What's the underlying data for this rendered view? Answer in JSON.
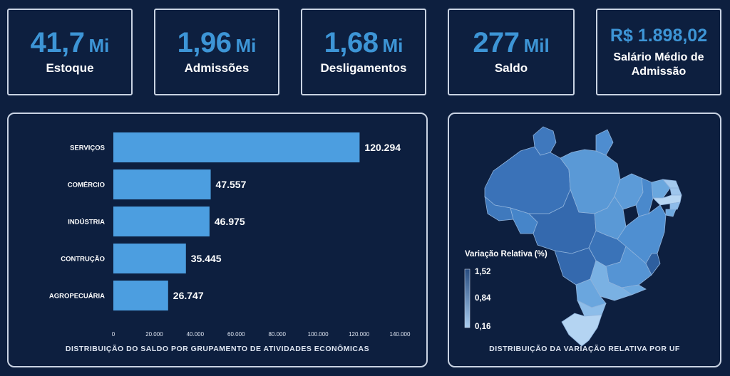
{
  "kpis": {
    "estoque": {
      "value": "41,7",
      "unit": "Mi",
      "label": "Estoque"
    },
    "admissoes": {
      "value": "1,96",
      "unit": "Mi",
      "label": "Admissões"
    },
    "desligamentos": {
      "value": "1,68",
      "unit": "Mi",
      "label": "Desligamentos"
    },
    "saldo": {
      "value": "277",
      "unit": "Mil",
      "label": "Saldo"
    },
    "salario": {
      "value": "R$ 1.898,02",
      "label_line1": "Salário Médio de",
      "label_line2": "Admissão"
    }
  },
  "bar_panel": {
    "title": "DISTRIBUIÇÃO DO SALDO POR GRUPAMENTO DE ATIVIDADES ECONÔMICAS"
  },
  "map_panel": {
    "title": "DISTRIBUIÇÃO DA VARIAÇÃO RELATIVA POR UF",
    "legend_title": "Variação Relativa (%)",
    "legend_ticks": [
      "1,52",
      "0,84",
      "0,16"
    ],
    "legend_colors": {
      "high": "#274c80",
      "low": "#a9cdf0"
    }
  },
  "colors": {
    "background": "#0d1f3f",
    "accent": "#3d95d6",
    "bar": "#4c9ee0",
    "border": "#c9d3e3"
  },
  "chart_data": {
    "type": "bar",
    "orientation": "horizontal",
    "categories": [
      "SERVIÇOS",
      "COMÉRCIO",
      "INDÚSTRIA",
      "CONTRUÇÃO",
      "AGROPECUÁRIA"
    ],
    "values": [
      120294,
      47557,
      46975,
      35445,
      26747
    ],
    "value_labels": [
      "120.294",
      "47.557",
      "46.975",
      "35.445",
      "26.747"
    ],
    "xlim": [
      0,
      140000
    ],
    "xticks": [
      0,
      20000,
      40000,
      60000,
      80000,
      100000,
      120000,
      140000
    ],
    "xtick_labels": [
      "0",
      "20.000",
      "40.000",
      "60.000",
      "80.000",
      "100.000",
      "120.000",
      "140.000"
    ],
    "title": "DISTRIBUIÇÃO DO SALDO POR GRUPAMENTO DE ATIVIDADES ECONÔMICAS",
    "grid": false,
    "legend": false
  }
}
